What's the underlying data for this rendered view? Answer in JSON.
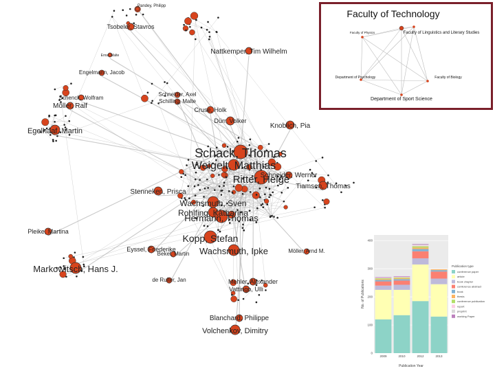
{
  "network": {
    "labels": [
      {
        "text": "Pandey, Philipp"
      },
      {
        "text": "Tsobeler, Stavros"
      },
      {
        "text": "Nattkemper, Tim Wilhelm"
      },
      {
        "text": "Ernst, Malte"
      },
      {
        "text": "Engelmann, Jacob"
      },
      {
        "text": "Schenck, Wolfram"
      },
      {
        "text": "Möller, Ralf"
      },
      {
        "text": "Egelhaaf, Martin"
      },
      {
        "text": "Schneider, Axel"
      },
      {
        "text": "Schilling, Malte"
      },
      {
        "text": "Cruse, Holk"
      },
      {
        "text": "Dürr, Volker"
      },
      {
        "text": "Knoblich, Pia"
      },
      {
        "text": "Schack, Thomas"
      },
      {
        "text": "Weigelt, Matthias"
      },
      {
        "text": "Ritter, Helge"
      },
      {
        "text": "Schneider, Werner"
      },
      {
        "text": "Tiamsen, Thomas"
      },
      {
        "text": "Stenneken, Prisca"
      },
      {
        "text": "Wachsmuth, Sven"
      },
      {
        "text": "Rohlfing, Katharina"
      },
      {
        "text": "Hermann, Thomas"
      },
      {
        "text": "Kopp, Stefan"
      },
      {
        "text": "Wachsmuth, Ipke"
      },
      {
        "text": "Eyssel, Friederike"
      },
      {
        "text": "Bekel, Martin"
      },
      {
        "text": "Pleike, Martina"
      },
      {
        "text": "Markowitsch, Hans J."
      },
      {
        "text": "de Ruiter, Jan"
      },
      {
        "text": "Mehler, Alexander"
      },
      {
        "text": "Vattingo, Ulli"
      },
      {
        "text": "Blanchard, Philippe"
      },
      {
        "text": "Volchenkov, Dimitry"
      },
      {
        "text": "Möller, Arnd M."
      }
    ]
  },
  "faculty_inset": {
    "title": "Faculty of Technology",
    "nodes": [
      {
        "label": "Faculty of Physics"
      },
      {
        "label": "Faculty of Linguistics and Literary Studies"
      },
      {
        "label": "Department of Psychology"
      },
      {
        "label": "Faculty of Biology"
      },
      {
        "label": "Department of Sport Science"
      }
    ]
  },
  "chart_data": {
    "type": "bar",
    "stacked": true,
    "xlabel": "Publication Year",
    "ylabel": "No. of Publications",
    "categories": [
      "2009",
      "2010",
      "2012",
      "2013"
    ],
    "ylim": [
      0,
      420
    ],
    "yticks": [
      0,
      100,
      200,
      300,
      400
    ],
    "legend_title": "Publication type",
    "legend_position": "right",
    "series": [
      {
        "name": "conference paper",
        "color": "#8dd3c7",
        "values": [
          120,
          135,
          185,
          130
        ]
      },
      {
        "name": "article",
        "color": "#ffffb3",
        "values": [
          105,
          90,
          130,
          115
        ]
      },
      {
        "name": "book chapter",
        "color": "#bebada",
        "values": [
          15,
          18,
          22,
          20
        ]
      },
      {
        "name": "conference abstract",
        "color": "#fb8072",
        "values": [
          15,
          15,
          25,
          25
        ]
      },
      {
        "name": "book",
        "color": "#80b1d3",
        "values": [
          5,
          5,
          8,
          5
        ]
      },
      {
        "name": "thesis",
        "color": "#fdb462",
        "values": [
          3,
          3,
          5,
          3
        ]
      },
      {
        "name": "conference publication",
        "color": "#b3de69",
        "values": [
          3,
          3,
          5,
          0
        ]
      },
      {
        "name": "report",
        "color": "#fccde5",
        "values": [
          2,
          2,
          3,
          0
        ]
      },
      {
        "name": "preprint",
        "color": "#d9d9d9",
        "values": [
          0,
          0,
          3,
          0
        ]
      },
      {
        "name": "working Paper",
        "color": "#bc80bd",
        "values": [
          2,
          2,
          2,
          0
        ]
      }
    ]
  },
  "colors": {
    "node": "#d7441d",
    "edge": "#bdbdbd",
    "frame": "#7a1f2a"
  }
}
